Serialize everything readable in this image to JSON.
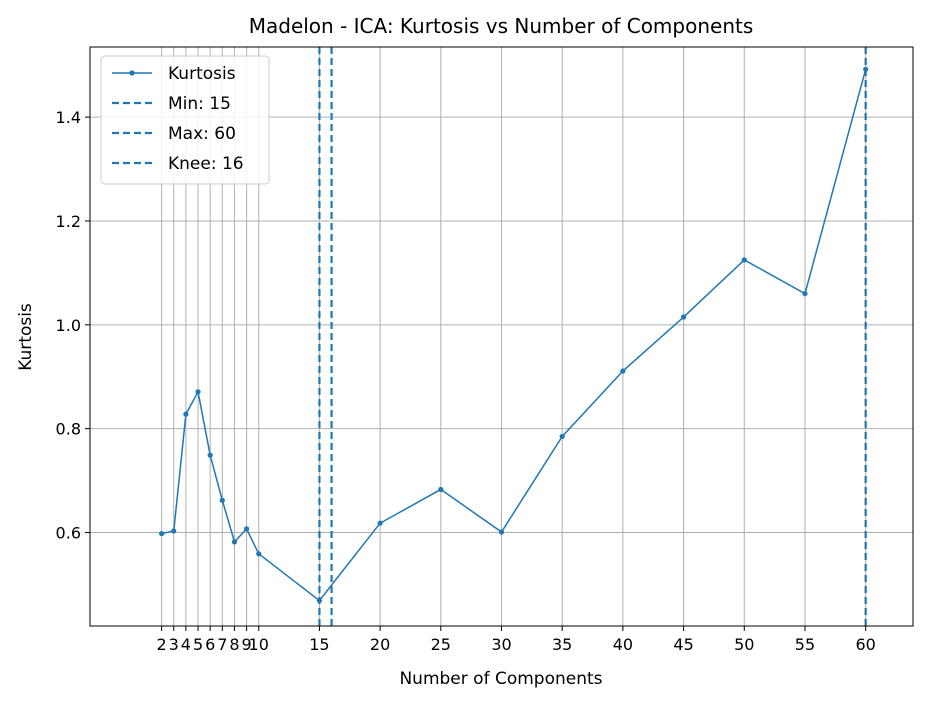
{
  "chart_data": {
    "type": "line",
    "title": "Madelon - ICA: Kurtosis vs Number of Components",
    "xlabel": "Number of Components",
    "ylabel": "Kurtosis",
    "xlim": [
      -3.9,
      63.9
    ],
    "ylim": [
      0.42,
      1.535
    ],
    "grid": true,
    "legend_position": "top-left",
    "color": "#1f77b4",
    "x_ticks": [
      2,
      3,
      4,
      5,
      6,
      7,
      8,
      9,
      10,
      15,
      20,
      25,
      30,
      35,
      40,
      45,
      50,
      55,
      60
    ],
    "x_tick_labels": [
      "2",
      "3",
      "4",
      "5",
      "6",
      "7",
      "8",
      "9",
      "10",
      "15",
      "20",
      "25",
      "30",
      "35",
      "40",
      "45",
      "50",
      "55",
      "60"
    ],
    "y_ticks": [
      0.6,
      0.8,
      1.0,
      1.2,
      1.4
    ],
    "y_tick_labels": [
      "0.6",
      "0.8",
      "1.0",
      "1.2",
      "1.4"
    ],
    "series": [
      {
        "name": "Kurtosis",
        "x": [
          2,
          3,
          4,
          5,
          6,
          7,
          8,
          9,
          10,
          15,
          20,
          25,
          30,
          35,
          40,
          45,
          50,
          55,
          60
        ],
        "y": [
          0.598,
          0.603,
          0.828,
          0.871,
          0.749,
          0.662,
          0.582,
          0.607,
          0.559,
          0.469,
          0.618,
          0.683,
          0.601,
          0.785,
          0.911,
          1.015,
          1.125,
          1.06,
          1.492
        ]
      }
    ],
    "vlines": [
      {
        "name": "Min: 15",
        "x": 15
      },
      {
        "name": "Max: 60",
        "x": 60
      },
      {
        "name": "Knee: 16",
        "x": 16
      }
    ]
  }
}
